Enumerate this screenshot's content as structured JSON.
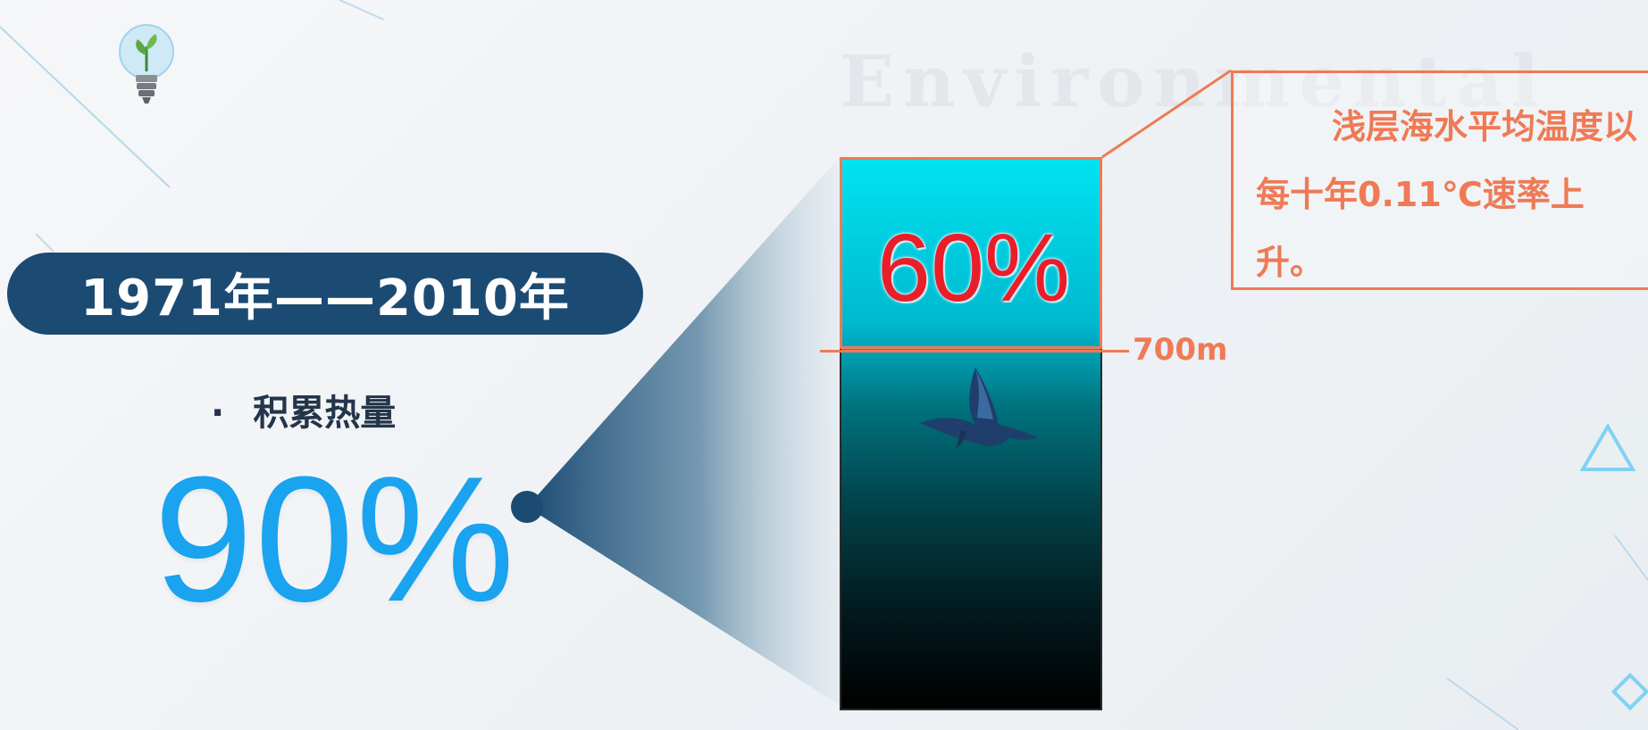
{
  "watermark": "Environmental",
  "period": "1971年——2010年",
  "heat": {
    "bullet": "·",
    "label": "积累热量",
    "percent": "90%"
  },
  "ocean": {
    "shallow_percent": "60%",
    "depth": "700m"
  },
  "callout": {
    "text": "浅层海水平均温度以每十年0.11℃速率上升。"
  },
  "colors": {
    "pill": "#1b4b73",
    "accent_orange": "#ef7a55",
    "percent_blue": "#1aa3ef",
    "shallow_red": "#ea1e2a"
  },
  "icons": [
    "lightbulb-sprout-icon",
    "whale-icon",
    "triangle-outline-icon",
    "diamond-outline-icon"
  ]
}
